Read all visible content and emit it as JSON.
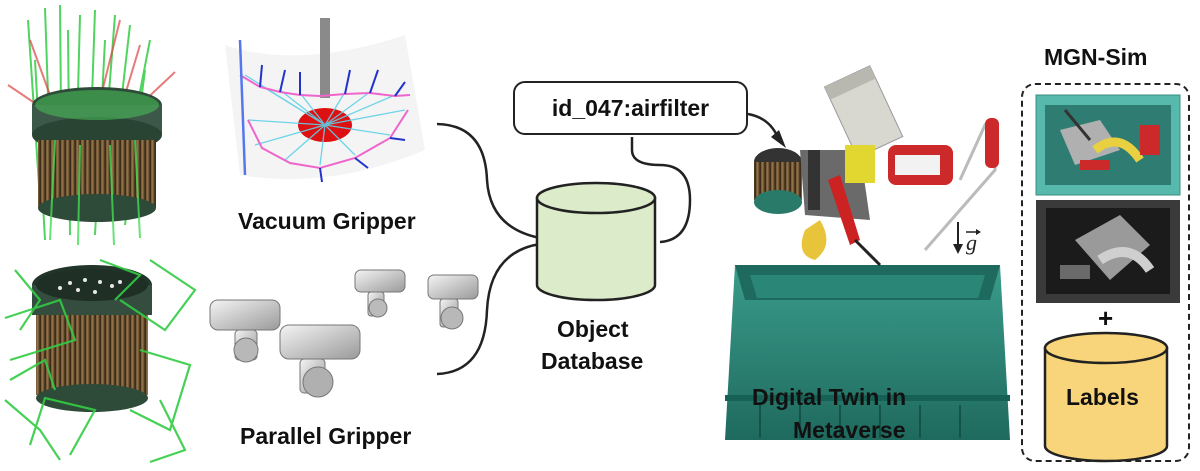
{
  "labels": {
    "vacuum_gripper": "Vacuum Gripper",
    "parallel_gripper": "Parallel Gripper",
    "object_database": [
      "Object",
      "Database"
    ],
    "object_id": "id_047:airfilter",
    "digital_twin": [
      "Digital Twin in",
      "Metaverse"
    ],
    "mgn_sim_title": "MGN-Sim",
    "plus": "+",
    "labels_cylinder": "Labels"
  },
  "colors": {
    "database_fill": "#dcebc9",
    "labels_fill": "#f8d57a",
    "tray_teal": "#2f8a7b",
    "stroke": "#222222",
    "ray_green": "#22cc33",
    "ray_red": "#dd3333"
  },
  "icons": {
    "gravity": "gravity-vector-icon"
  }
}
